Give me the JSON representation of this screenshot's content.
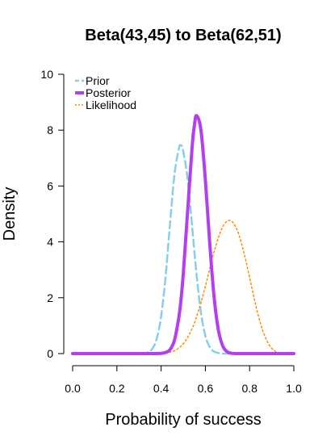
{
  "chart_data": {
    "type": "line",
    "title": "Beta(43,45) to Beta(62,51)",
    "xlabel": "Probability of success",
    "ylabel": "Density",
    "xlim": [
      0,
      1
    ],
    "ylim": [
      0,
      10
    ],
    "x_ticks": [
      "0.0",
      "0.2",
      "0.4",
      "0.6",
      "0.8",
      "1.0"
    ],
    "y_ticks": [
      "0",
      "2",
      "4",
      "6",
      "8",
      "10"
    ],
    "grid": false,
    "legend_position": "top-left",
    "x": [
      0.0,
      0.25,
      0.3,
      0.32,
      0.34,
      0.36,
      0.38,
      0.4,
      0.42,
      0.44,
      0.46,
      0.48,
      0.49,
      0.5,
      0.52,
      0.54,
      0.55,
      0.56,
      0.58,
      0.6,
      0.62,
      0.64,
      0.66,
      0.68,
      0.7,
      0.72,
      0.74,
      0.76,
      0.78,
      0.8,
      0.82,
      0.84,
      0.86,
      0.88,
      0.9,
      0.92,
      0.95,
      1.0
    ],
    "series": [
      {
        "name": "Prior",
        "color": "#87ceeb",
        "style": "dashed",
        "values": [
          0,
          0,
          0,
          0.01,
          0.05,
          0.17,
          0.53,
          1.33,
          2.74,
          4.63,
          6.38,
          7.33,
          7.46,
          7.24,
          6.22,
          4.55,
          3.69,
          2.85,
          1.48,
          0.64,
          0.23,
          0.07,
          0.02,
          0,
          0,
          0,
          0,
          0,
          0,
          0,
          0,
          0,
          0,
          0,
          0,
          0,
          0,
          0
        ]
      },
      {
        "name": "Posterior",
        "color": "#b43fee",
        "style": "solid",
        "values": [
          0,
          0,
          0,
          0,
          0,
          0,
          0,
          0.01,
          0.04,
          0.14,
          0.47,
          1.29,
          1.96,
          2.84,
          5.13,
          7.39,
          8.13,
          8.52,
          8.01,
          6.22,
          3.92,
          1.98,
          0.8,
          0.25,
          0.06,
          0.01,
          0,
          0,
          0,
          0,
          0,
          0,
          0,
          0,
          0,
          0,
          0,
          0
        ]
      },
      {
        "name": "Likelihood",
        "color": "#ff8c00",
        "style": "dotted",
        "values": [
          0,
          0,
          0,
          0,
          0,
          0,
          0,
          0,
          0.02,
          0.05,
          0.1,
          0.2,
          0.27,
          0.35,
          0.58,
          0.89,
          1.08,
          1.31,
          1.82,
          2.41,
          3.05,
          3.66,
          4.18,
          4.56,
          4.75,
          4.73,
          4.49,
          4.04,
          3.43,
          2.72,
          2.0,
          1.34,
          0.81,
          0.43,
          0.19,
          0.07,
          0.01,
          0
        ]
      }
    ]
  }
}
